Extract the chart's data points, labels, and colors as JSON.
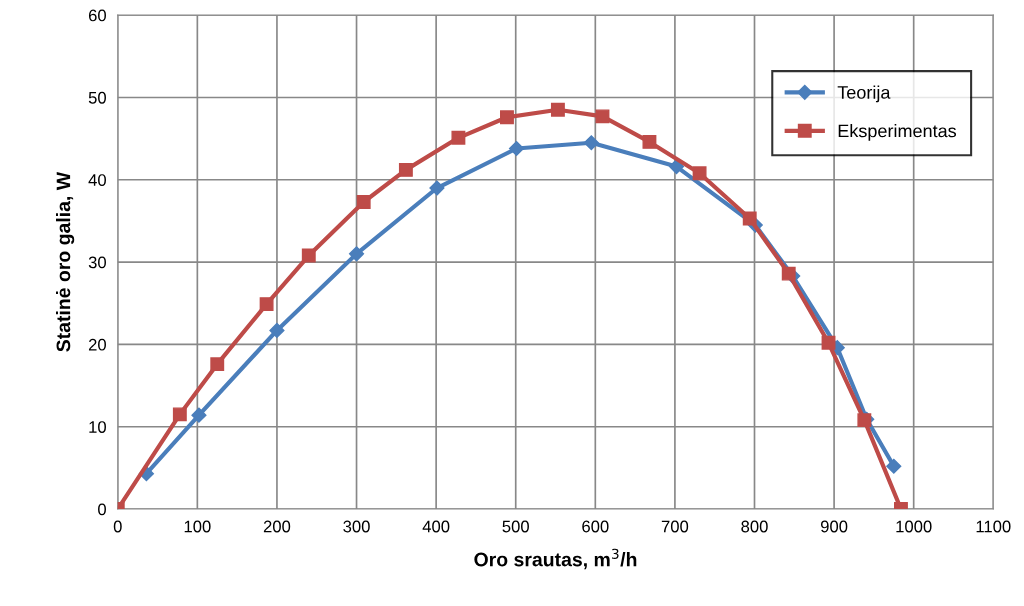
{
  "chart_data": {
    "type": "line",
    "xlabel": "Oro srautas, m$^{3}$/h",
    "ylabel": "Statinė oro galia, W",
    "series": [
      {
        "name": "Teorija",
        "color": "#4a7ebb",
        "marker": "diamond",
        "x": [
          36,
          102,
          200,
          300,
          401,
          501,
          595,
          702,
          801,
          848,
          904,
          941,
          975
        ],
        "values": [
          4.3,
          11.4,
          21.7,
          31.0,
          39.0,
          43.8,
          44.5,
          41.6,
          34.5,
          28.3,
          19.6,
          10.9,
          5.2
        ]
      },
      {
        "name": "Eksperimentas",
        "color": "#be4b48",
        "marker": "square",
        "x": [
          0,
          78,
          125,
          187,
          240,
          309,
          362,
          428,
          489,
          553,
          609,
          668,
          731,
          794,
          843,
          893,
          938,
          984
        ],
        "values": [
          0,
          11.5,
          17.6,
          24.9,
          30.8,
          37.3,
          41.2,
          45.1,
          47.6,
          48.5,
          47.7,
          44.6,
          40.8,
          35.3,
          28.6,
          20.2,
          10.8,
          0
        ]
      }
    ],
    "xlim": [
      0,
      1100
    ],
    "xticks": [
      0,
      100,
      200,
      300,
      400,
      500,
      600,
      700,
      800,
      900,
      1000,
      1100
    ],
    "ylim": [
      0,
      60
    ],
    "yticks": [
      0,
      10,
      20,
      30,
      40,
      50,
      60
    ],
    "grid": true,
    "legend": "top right",
    "line_style": "solid"
  }
}
